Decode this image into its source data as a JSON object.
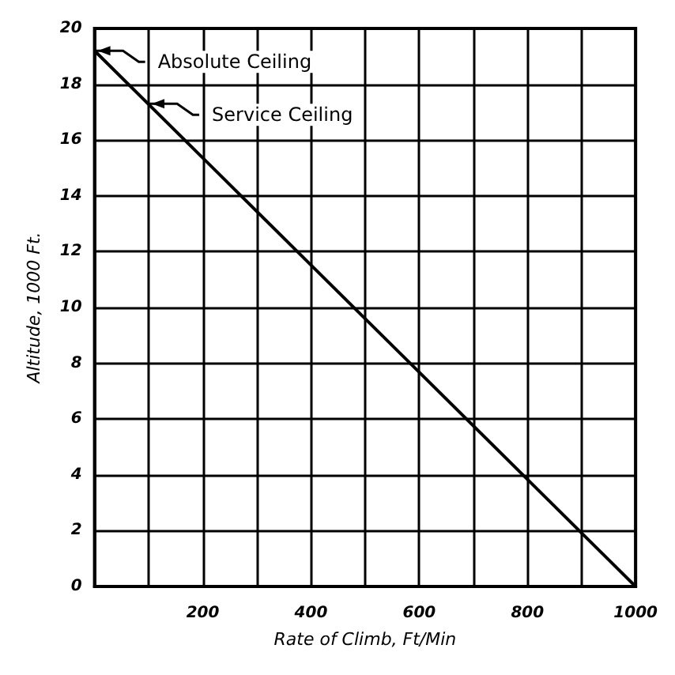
{
  "chart_data": {
    "type": "line",
    "xlabel": "Rate of Climb, Ft/Min",
    "ylabel": "Altitude, 1000 Ft.",
    "x": [
      0,
      1000
    ],
    "series": [
      {
        "color": "#000000",
        "values": [
          19.2,
          0
        ]
      }
    ],
    "xlim": [
      0,
      1000
    ],
    "ylim": [
      0,
      20
    ],
    "xticks": [
      {
        "value": 0,
        "label": null
      },
      {
        "value": 100,
        "label": null
      },
      200,
      {
        "value": 300,
        "label": null
      },
      400,
      {
        "value": 500,
        "label": null
      },
      600,
      {
        "value": 700,
        "label": null
      },
      800,
      {
        "value": 900,
        "label": null
      },
      1000
    ],
    "yticks": [
      0,
      2,
      4,
      6,
      8,
      10,
      12,
      14,
      16,
      18,
      20
    ],
    "grid": true,
    "marker": "none",
    "line_style": "solid",
    "annotations": [
      {
        "text": "Absolute Ceiling",
        "x": 0,
        "y": 19.2
      },
      {
        "text": "Service Ceiling",
        "x": 100,
        "y": 17.3
      }
    ]
  }
}
